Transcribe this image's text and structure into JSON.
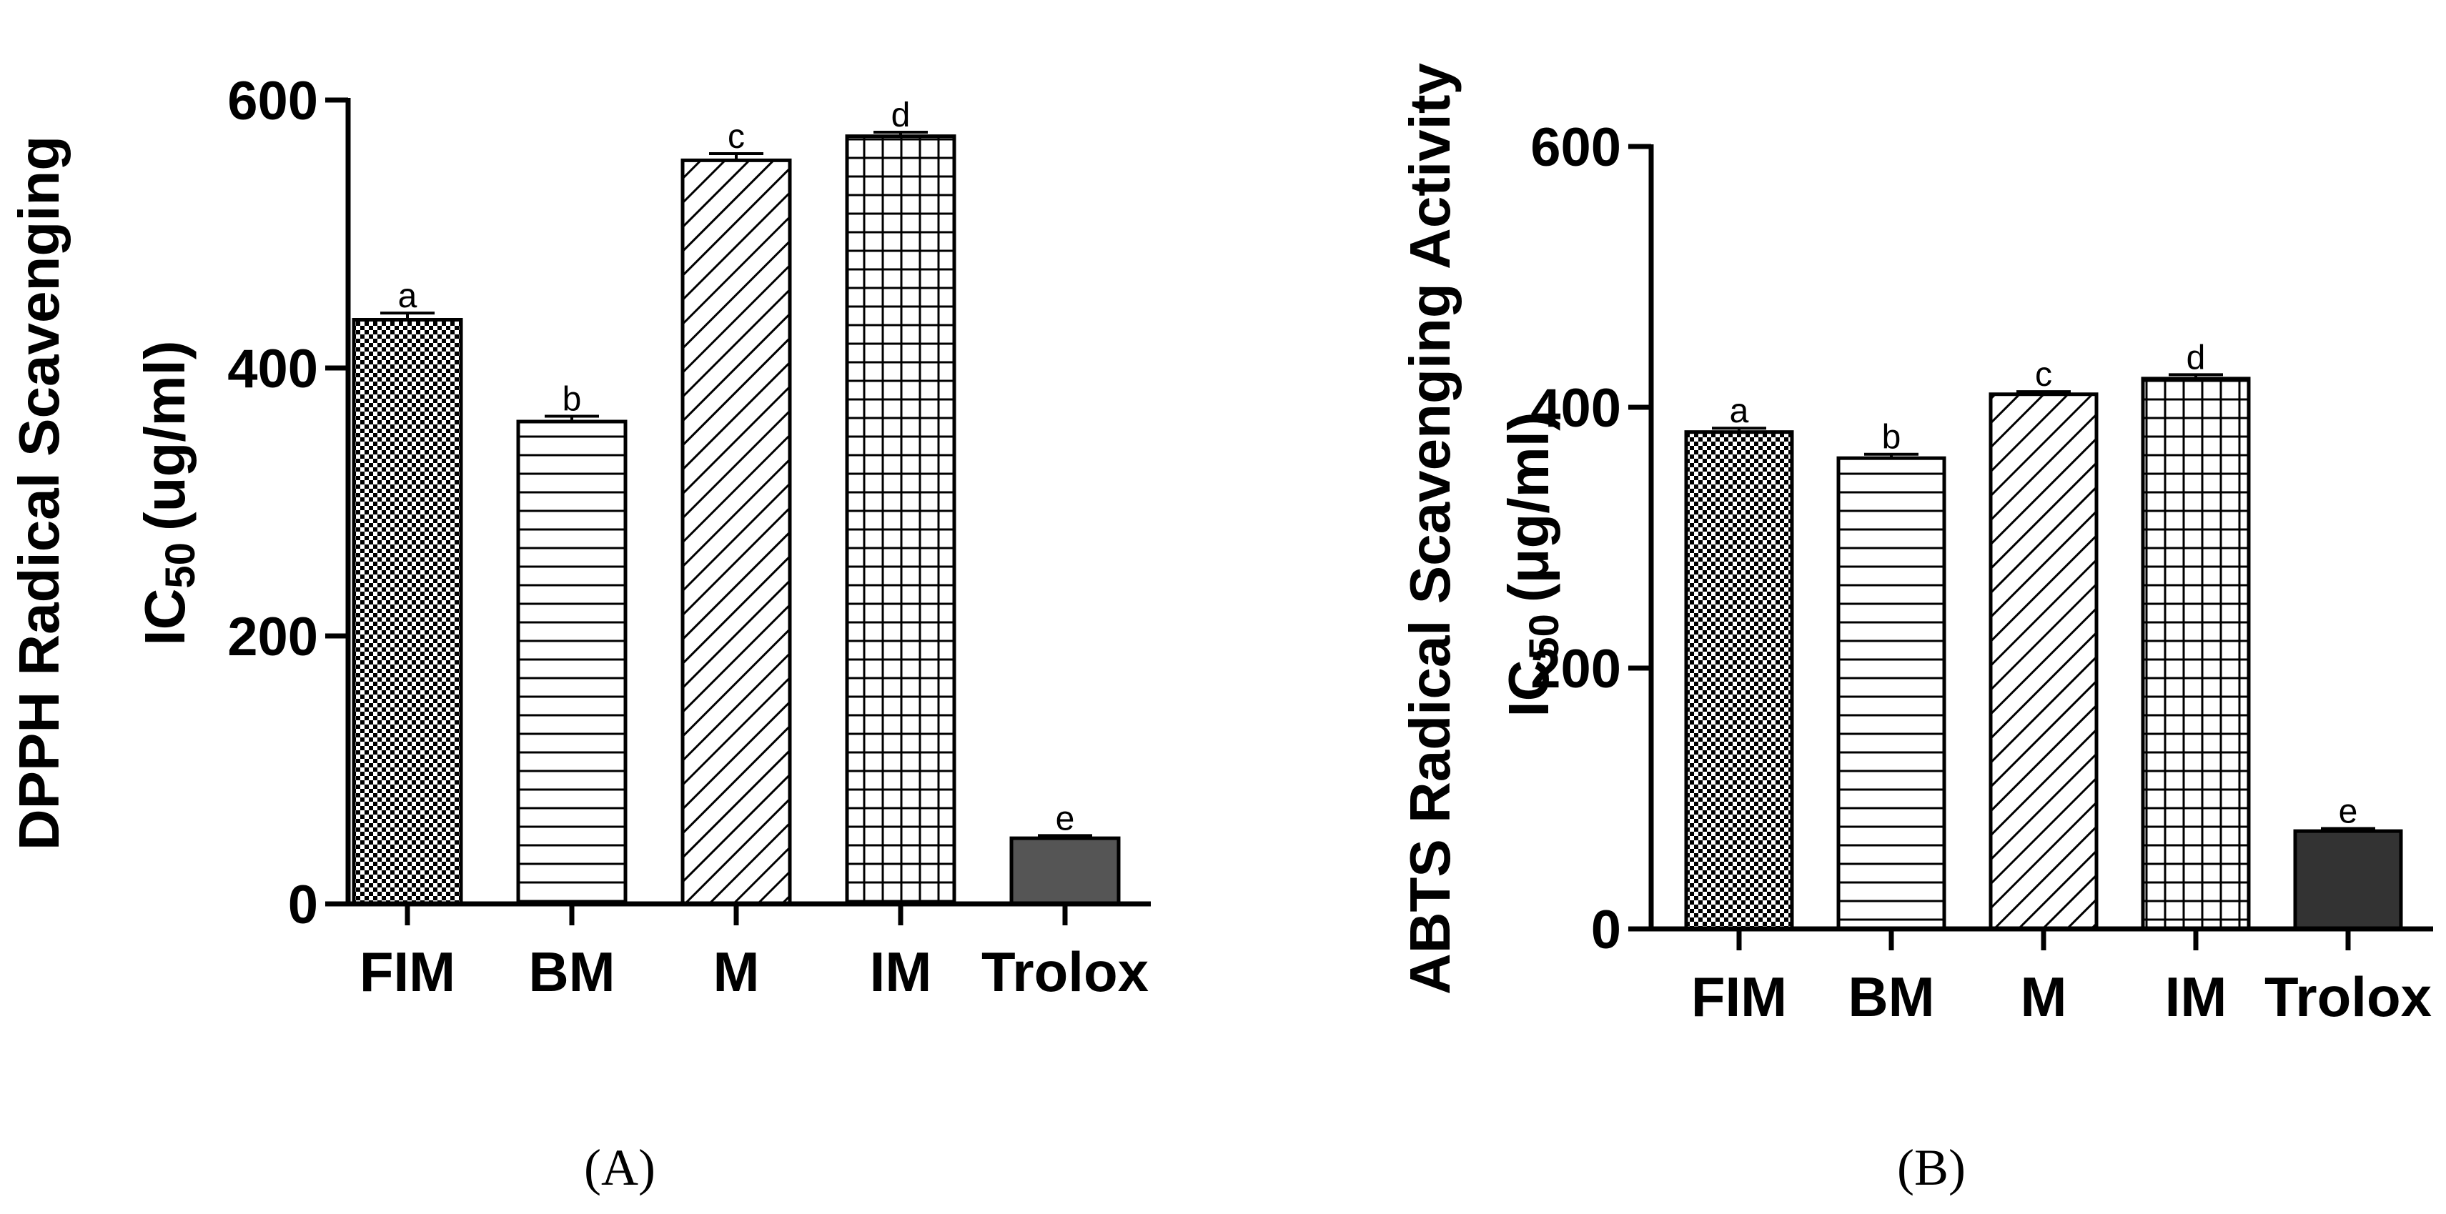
{
  "colors": {
    "axis": "#000000",
    "trolox_a": "#555555",
    "trolox_b": "#333333",
    "pattern_line": "#000000",
    "background": "#ffffff"
  },
  "chart_data": [
    {
      "type": "bar",
      "panel": "(A)",
      "categories": [
        "FIM",
        "BM",
        "M",
        "IM",
        "Trolox"
      ],
      "values": [
        436,
        360,
        555,
        573,
        49
      ],
      "errors": [
        5,
        4,
        5,
        3,
        2
      ],
      "significance": [
        "a",
        "b",
        "c",
        "d",
        "e"
      ],
      "patterns": [
        "checker",
        "horizontal",
        "diagonal",
        "grid",
        "solid"
      ],
      "ylim": [
        0,
        600
      ],
      "yticks": [
        0,
        200,
        400,
        600
      ],
      "ylabel_line1": "DPPH Radical Scavenging",
      "ylabel_line2_main": "IC",
      "ylabel_line2_sub": "50",
      "ylabel_line2_unit": "(ug/ml)",
      "xlabel": "",
      "title": ""
    },
    {
      "type": "bar",
      "panel": "(B)",
      "categories": [
        "FIM",
        "BM",
        "M",
        "IM",
        "Trolox"
      ],
      "values": [
        381,
        361,
        410,
        422,
        75
      ],
      "errors": [
        3,
        3,
        2,
        3,
        2
      ],
      "significance": [
        "a",
        "b",
        "c",
        "d",
        "e"
      ],
      "patterns": [
        "checker",
        "horizontal",
        "diagonal",
        "grid",
        "solid"
      ],
      "ylim": [
        0,
        600
      ],
      "yticks": [
        0,
        200,
        400,
        600
      ],
      "ylabel_line1": "ABTS Radical Scavenging Activity",
      "ylabel_line2_main": "IC",
      "ylabel_line2_sub": "50",
      "ylabel_line2_unit": "(μg/ml)",
      "xlabel": "",
      "title": ""
    }
  ]
}
